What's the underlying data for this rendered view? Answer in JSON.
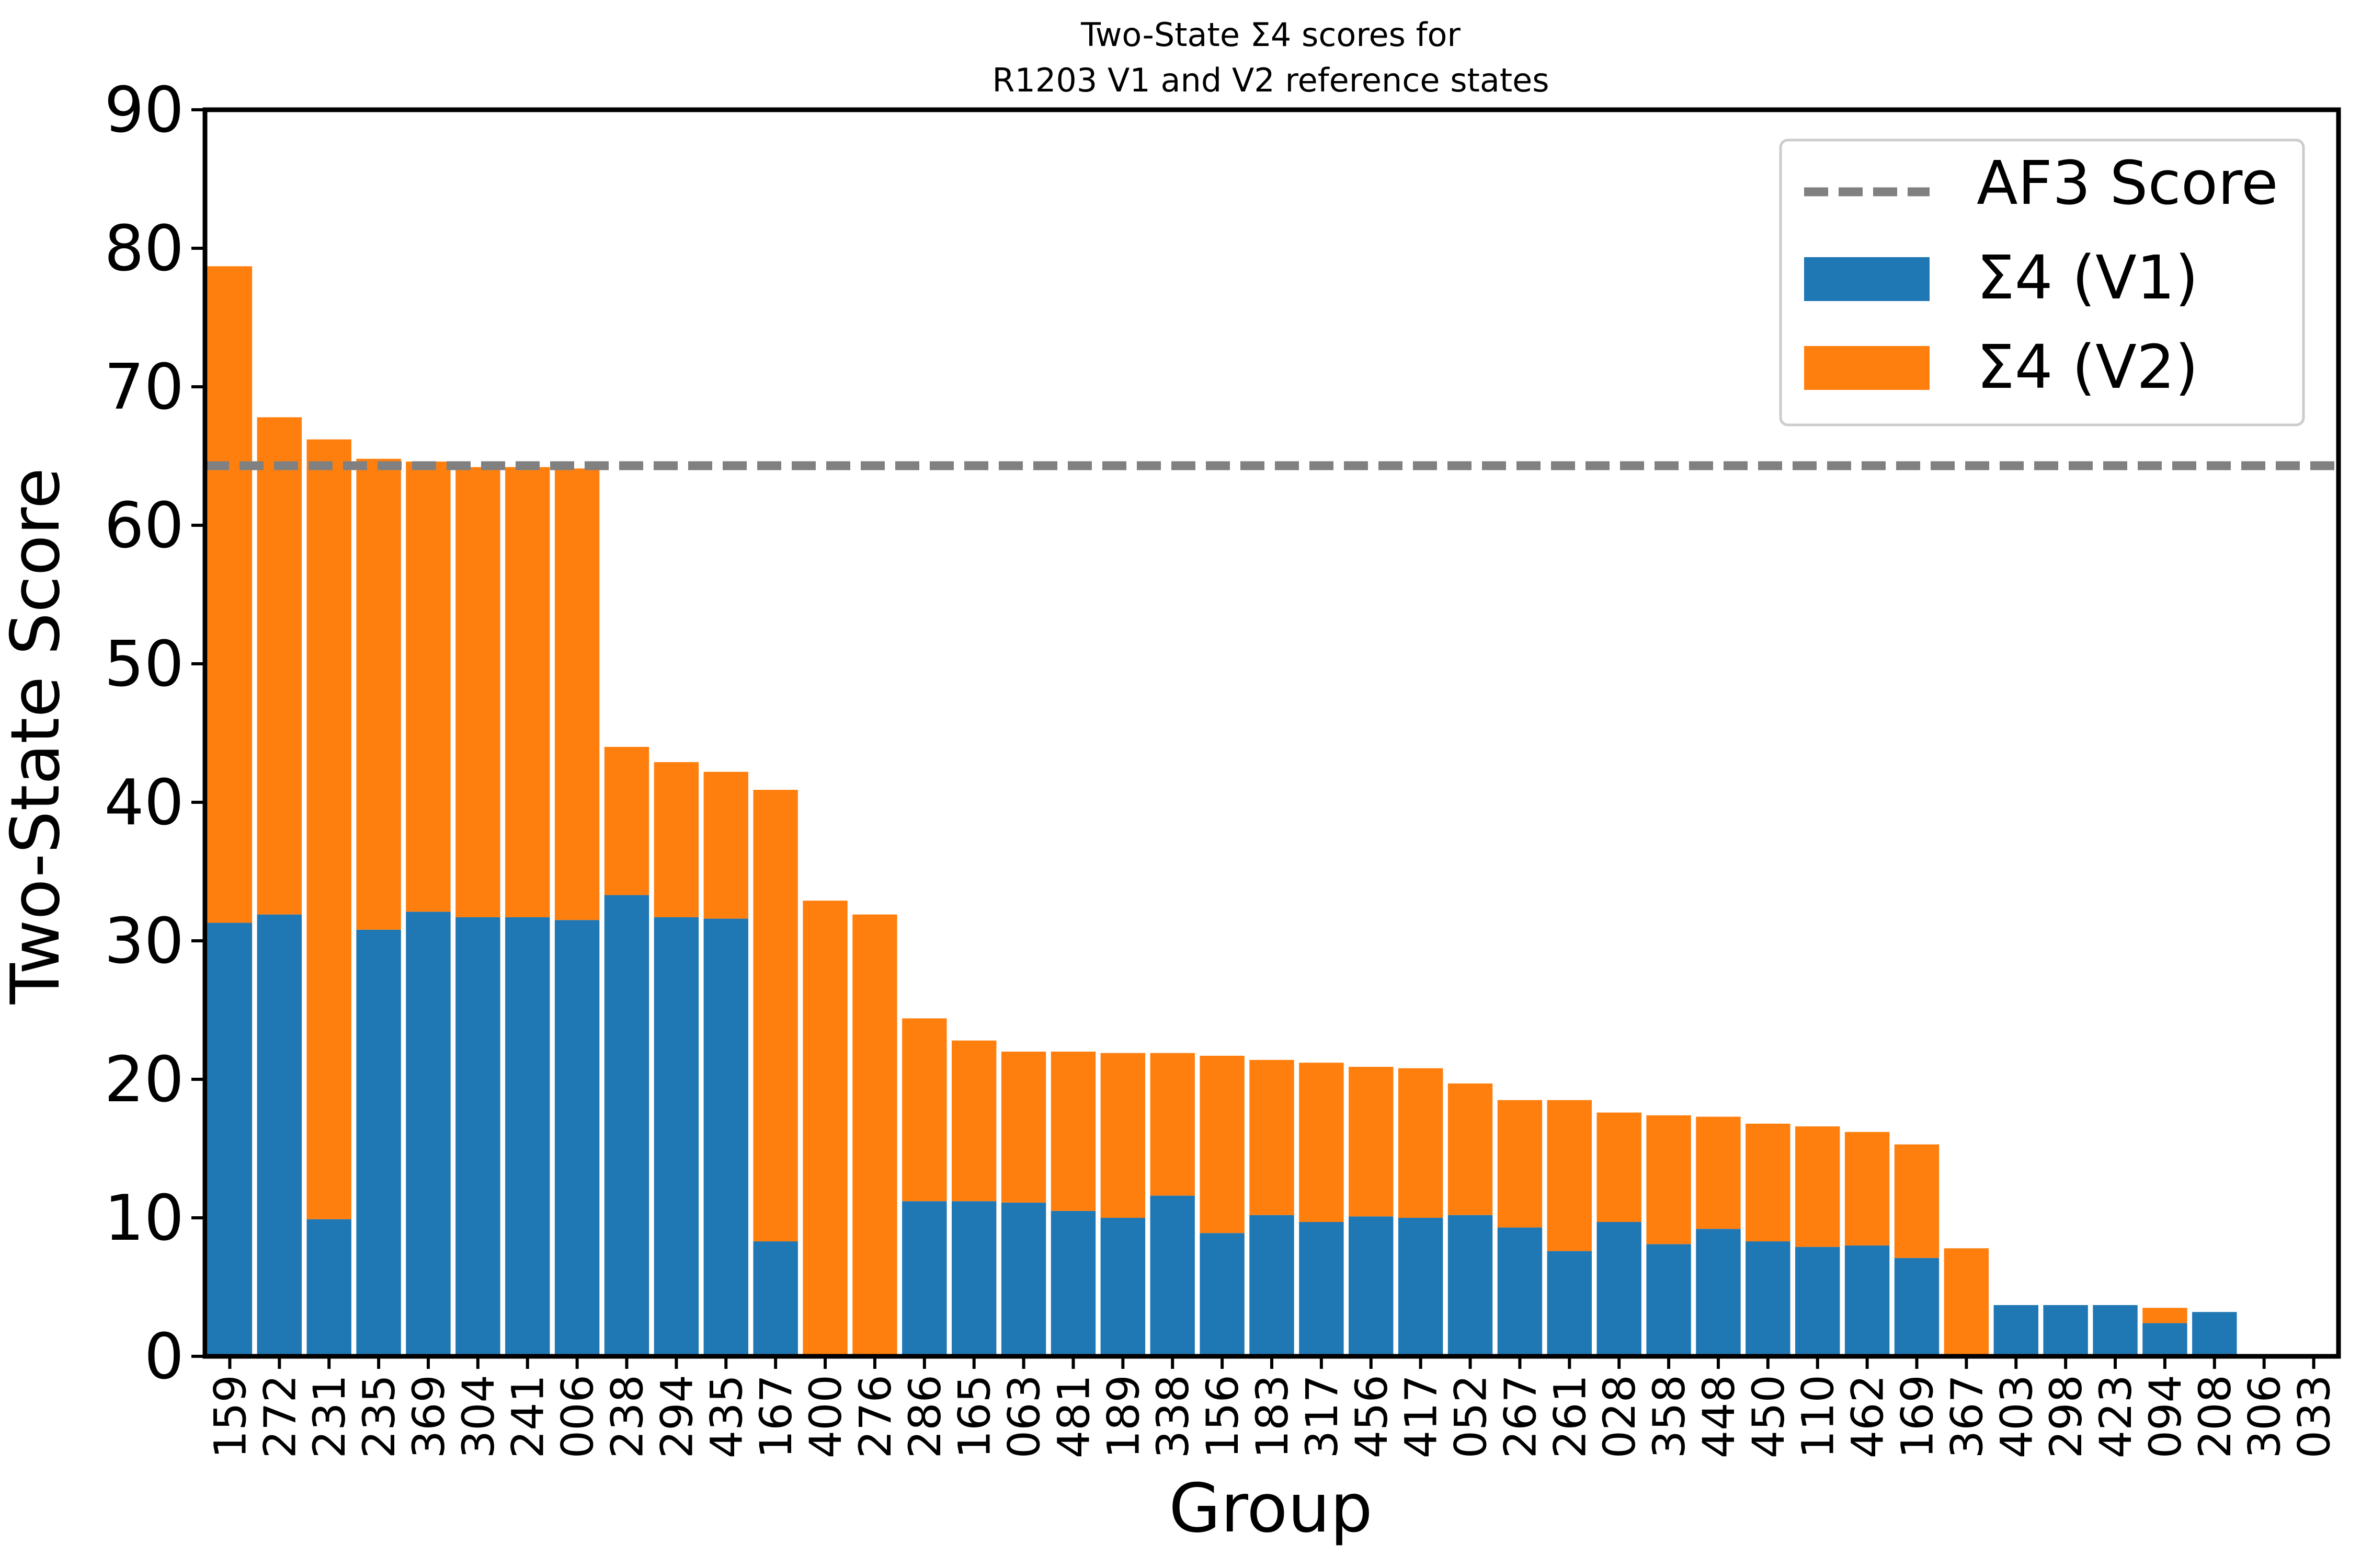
{
  "chart_data": {
    "type": "bar",
    "stacked": true,
    "title": "Two-State Σ4 scores for",
    "subtitle": "R1203 V1 and V2 reference states",
    "xlabel": "Group",
    "ylabel": "Two-State Score",
    "ylim": [
      0,
      90
    ],
    "yticks": [
      0,
      10,
      20,
      30,
      40,
      50,
      60,
      70,
      80,
      90
    ],
    "grid": false,
    "legend_position": "top-right",
    "categories": [
      "159",
      "272",
      "231",
      "235",
      "369",
      "304",
      "241",
      "006",
      "238",
      "294",
      "435",
      "167",
      "400",
      "276",
      "286",
      "165",
      "063",
      "481",
      "189",
      "338",
      "156",
      "183",
      "317",
      "456",
      "417",
      "052",
      "267",
      "261",
      "028",
      "358",
      "448",
      "450",
      "110",
      "462",
      "169",
      "367",
      "403",
      "298",
      "423",
      "094",
      "208",
      "306",
      "033"
    ],
    "series": [
      {
        "name": "Σ4 (V1)",
        "color": "#1f77b4",
        "values": [
          31.3,
          31.9,
          9.9,
          30.8,
          32.1,
          31.7,
          31.7,
          31.5,
          33.3,
          31.7,
          31.6,
          8.3,
          0,
          0,
          11.2,
          11.2,
          11.1,
          10.5,
          10.0,
          11.6,
          8.9,
          10.2,
          9.7,
          10.1,
          10.0,
          10.2,
          9.3,
          7.6,
          9.7,
          8.1,
          9.2,
          8.3,
          7.9,
          8.0,
          7.1,
          0,
          3.7,
          3.7,
          3.7,
          2.4,
          3.2,
          0,
          0
        ]
      },
      {
        "name": "Σ4 (V2)",
        "color": "#ff7f0e",
        "values": [
          47.4,
          35.9,
          56.3,
          34.0,
          32.5,
          32.5,
          32.5,
          32.6,
          10.7,
          11.2,
          10.6,
          32.6,
          32.9,
          31.9,
          13.2,
          11.6,
          10.9,
          11.5,
          11.9,
          10.3,
          12.8,
          11.2,
          11.5,
          10.8,
          10.8,
          9.5,
          9.2,
          10.9,
          7.9,
          9.3,
          8.1,
          8.5,
          8.7,
          8.2,
          8.2,
          7.8,
          0,
          0,
          0,
          1.1,
          0,
          0,
          0
        ]
      }
    ],
    "reference_line": {
      "name": "AF3 Score",
      "value": 64.3,
      "color": "#808080",
      "style": "dashed"
    }
  }
}
